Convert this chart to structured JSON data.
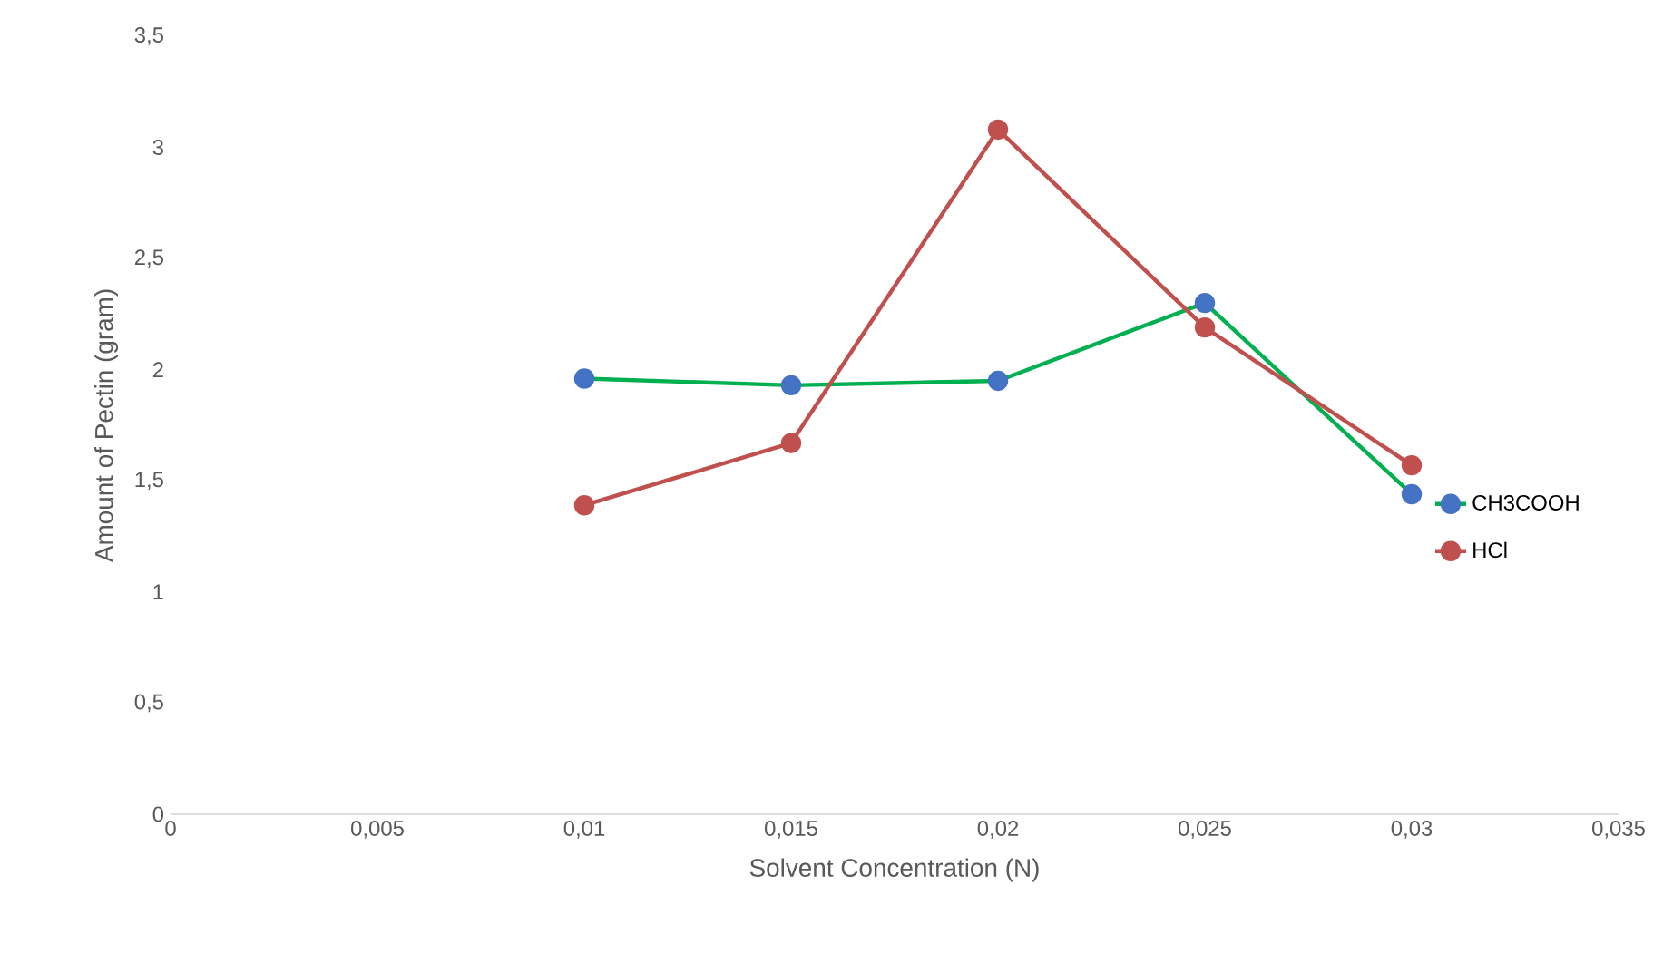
{
  "chart_data": {
    "type": "line",
    "xlabel": "Solvent Concentration (N)",
    "ylabel": "Amount of Pectin (gram)",
    "x": [
      0.01,
      0.015,
      0.02,
      0.025,
      0.03
    ],
    "series": [
      {
        "name": "CH3COOH",
        "color": "#00b050",
        "colors": [
          "#4472c4",
          "#4472c4",
          "#4472c4",
          "#4472c4",
          "#4472c4"
        ],
        "values": [
          1.96,
          1.93,
          1.95,
          2.3,
          1.44
        ]
      },
      {
        "name": "HCl",
        "color": "#c0504d",
        "values": [
          1.39,
          1.67,
          3.08,
          2.19,
          1.57
        ]
      }
    ],
    "xlim": [
      0,
      0.035
    ],
    "xticks": [
      0,
      {
        "value": 0.005,
        "label": "0,005"
      },
      {
        "value": 0.01,
        "label": "0,01"
      },
      {
        "value": 0.015,
        "label": "0,015"
      },
      {
        "value": 0.02,
        "label": "0,02"
      },
      {
        "value": 0.025,
        "label": "0,025"
      },
      {
        "value": 0.03,
        "label": "0,03"
      },
      {
        "value": 0.035,
        "label": "0,035"
      }
    ],
    "ylim": [
      0,
      3.5
    ],
    "yticks": [
      0,
      {
        "value": 0.5,
        "label": "0,5"
      },
      1,
      {
        "value": 1.5,
        "label": "1,5"
      },
      2,
      {
        "value": 2.5,
        "label": "2,5"
      },
      3,
      {
        "value": 3.5,
        "label": "3,5"
      }
    ],
    "legend": "right",
    "marker": "circle",
    "line_style": "solid",
    "grid": false
  }
}
